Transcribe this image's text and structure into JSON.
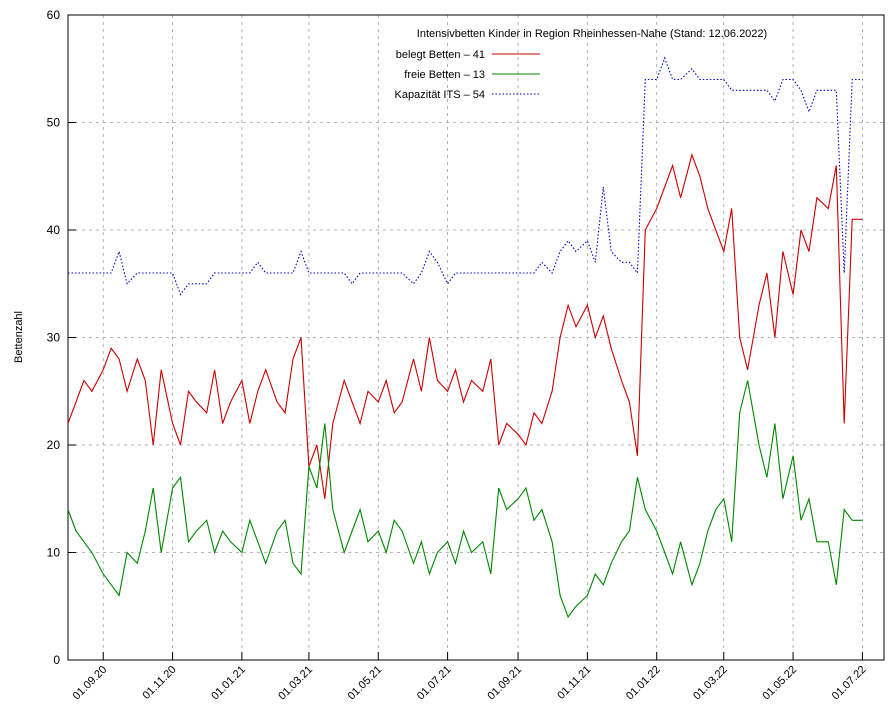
{
  "chart_data": {
    "type": "line",
    "title": "Intensivbetten Kinder in Region Rheinhessen-Nahe (Stand: 12.06.2022)",
    "y_label": "Bettenzahl",
    "x": [
      "01.08.20",
      "08.08.20",
      "15.08.20",
      "22.08.20",
      "01.09.20",
      "08.09.20",
      "15.09.20",
      "22.09.20",
      "01.10.20",
      "08.10.20",
      "15.10.20",
      "22.10.20",
      "01.11.20",
      "08.11.20",
      "15.11.20",
      "22.11.20",
      "01.12.20",
      "08.12.20",
      "15.12.20",
      "22.12.20",
      "01.01.21",
      "08.01.21",
      "15.01.21",
      "22.01.21",
      "01.02.21",
      "08.02.21",
      "15.02.21",
      "22.02.21",
      "01.03.21",
      "08.03.21",
      "15.03.21",
      "22.03.21",
      "01.04.21",
      "08.04.21",
      "15.04.21",
      "22.04.21",
      "01.05.21",
      "08.05.21",
      "15.05.21",
      "22.05.21",
      "01.06.21",
      "08.06.21",
      "15.06.21",
      "22.06.21",
      "01.07.21",
      "08.07.21",
      "15.07.21",
      "22.07.21",
      "01.08.21",
      "08.08.21",
      "15.08.21",
      "22.08.21",
      "01.09.21",
      "08.09.21",
      "15.09.21",
      "22.09.21",
      "01.10.21",
      "08.10.21",
      "15.10.21",
      "22.10.21",
      "01.11.21",
      "08.11.21",
      "15.11.21",
      "22.11.21",
      "01.12.21",
      "08.12.21",
      "15.12.21",
      "22.12.21",
      "01.01.22",
      "08.01.22",
      "15.01.22",
      "22.01.22",
      "01.02.22",
      "08.02.22",
      "15.02.22",
      "22.02.22",
      "01.03.22",
      "08.03.22",
      "15.03.22",
      "22.03.22",
      "01.04.22",
      "08.04.22",
      "15.04.22",
      "22.04.22",
      "01.05.22",
      "08.05.22",
      "15.05.22",
      "22.05.22",
      "01.06.22",
      "08.06.22",
      "15.06.22",
      "22.06.22",
      "01.07.22"
    ],
    "series": [
      {
        "name": "belegt Betten – 41",
        "color": "#cc0000",
        "style": "solid",
        "values": [
          22,
          24,
          26,
          25,
          27,
          29,
          28,
          25,
          28,
          26,
          20,
          27,
          22,
          20,
          25,
          24,
          23,
          27,
          22,
          24,
          26,
          22,
          25,
          27,
          24,
          23,
          28,
          30,
          18,
          20,
          15,
          22,
          26,
          24,
          22,
          25,
          24,
          26,
          23,
          24,
          28,
          25,
          30,
          26,
          25,
          27,
          24,
          26,
          25,
          28,
          20,
          22,
          21,
          20,
          23,
          22,
          25,
          30,
          33,
          31,
          33,
          30,
          32,
          29,
          26,
          24,
          19,
          40,
          42,
          44,
          46,
          43,
          47,
          45,
          42,
          40,
          38,
          42,
          30,
          27,
          33,
          36,
          30,
          38,
          34,
          40,
          38,
          43,
          42,
          46,
          22,
          41,
          41
        ]
      },
      {
        "name": "freie Betten – 13",
        "color": "#008800",
        "style": "solid",
        "values": [
          14,
          12,
          11,
          10,
          8,
          7,
          6,
          10,
          9,
          12,
          16,
          10,
          16,
          17,
          11,
          12,
          13,
          10,
          12,
          11,
          10,
          13,
          11,
          9,
          12,
          13,
          9,
          8,
          18,
          16,
          22,
          14,
          10,
          12,
          14,
          11,
          12,
          10,
          13,
          12,
          9,
          11,
          8,
          10,
          11,
          9,
          12,
          10,
          11,
          8,
          16,
          14,
          15,
          16,
          13,
          14,
          11,
          6,
          4,
          5,
          6,
          8,
          7,
          9,
          11,
          12,
          17,
          14,
          12,
          10,
          8,
          11,
          7,
          9,
          12,
          14,
          15,
          11,
          23,
          26,
          20,
          17,
          22,
          15,
          19,
          13,
          15,
          11,
          11,
          7,
          14,
          13,
          13
        ]
      },
      {
        "name": "Kapazität ITS – 54",
        "color": "#0000cc",
        "style": "dotted",
        "values": [
          36,
          36,
          36,
          36,
          36,
          36,
          38,
          35,
          36,
          36,
          36,
          36,
          36,
          34,
          35,
          35,
          35,
          36,
          36,
          36,
          36,
          36,
          37,
          36,
          36,
          36,
          36,
          38,
          36,
          36,
          36,
          36,
          36,
          35,
          36,
          36,
          36,
          36,
          36,
          36,
          35,
          36,
          38,
          37,
          35,
          36,
          36,
          36,
          36,
          36,
          36,
          36,
          36,
          36,
          36,
          37,
          36,
          38,
          39,
          38,
          39,
          37,
          44,
          38,
          37,
          37,
          36,
          54,
          54,
          56,
          54,
          54,
          55,
          54,
          54,
          54,
          54,
          53,
          53,
          53,
          53,
          53,
          52,
          54,
          54,
          53,
          51,
          53,
          53,
          53,
          36,
          54,
          54
        ]
      }
    ],
    "xlim": [
      "01.08.20",
      "20.07.22"
    ],
    "xticks": [
      "01.09.20",
      "01.11.20",
      "01.01.21",
      "01.03.21",
      "01.05.21",
      "01.07.21",
      "01.09.21",
      "01.11.21",
      "01.01.22",
      "01.03.22",
      "01.05.22",
      "01.07.22"
    ],
    "ylim": [
      0,
      60
    ],
    "yticks": [
      0,
      10,
      20,
      30,
      40,
      50,
      60
    ],
    "grid": true
  }
}
